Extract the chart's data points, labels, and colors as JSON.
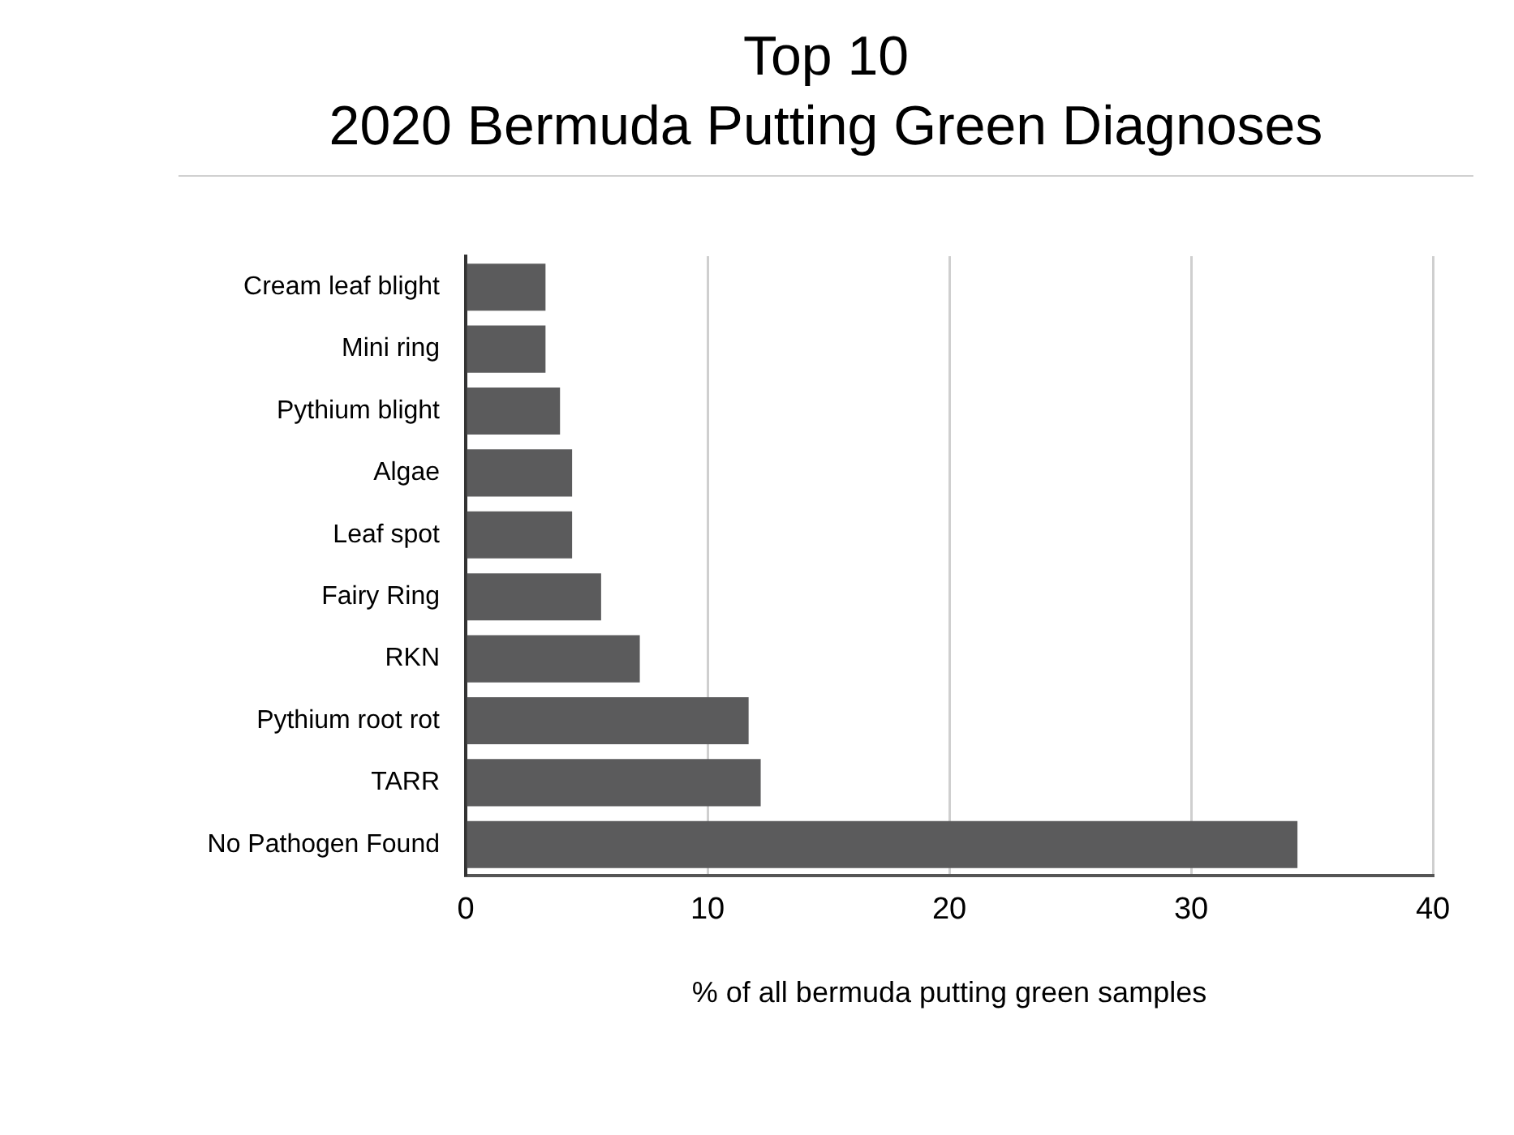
{
  "chart_data": {
    "type": "bar",
    "orientation": "horizontal",
    "title": "Top 10\n2020 Bermuda Putting Green Diagnoses",
    "xlabel": "% of all bermuda putting green samples",
    "categories": [
      "Cream leaf blight",
      "Mini ring",
      "Pythium blight",
      "Algae",
      "Leaf spot",
      "Fairy Ring",
      "RKN",
      "Pythium root rot",
      "TARR",
      "No Pathogen Found"
    ],
    "values": [
      3.3,
      3.3,
      3.9,
      4.4,
      4.4,
      5.6,
      7.2,
      11.7,
      12.2,
      34.4
    ],
    "color": "#5b5b5c",
    "xlim": [
      0,
      40
    ],
    "xticks": [
      0,
      10,
      20,
      30,
      40
    ],
    "grid": "x",
    "legend": false
  }
}
